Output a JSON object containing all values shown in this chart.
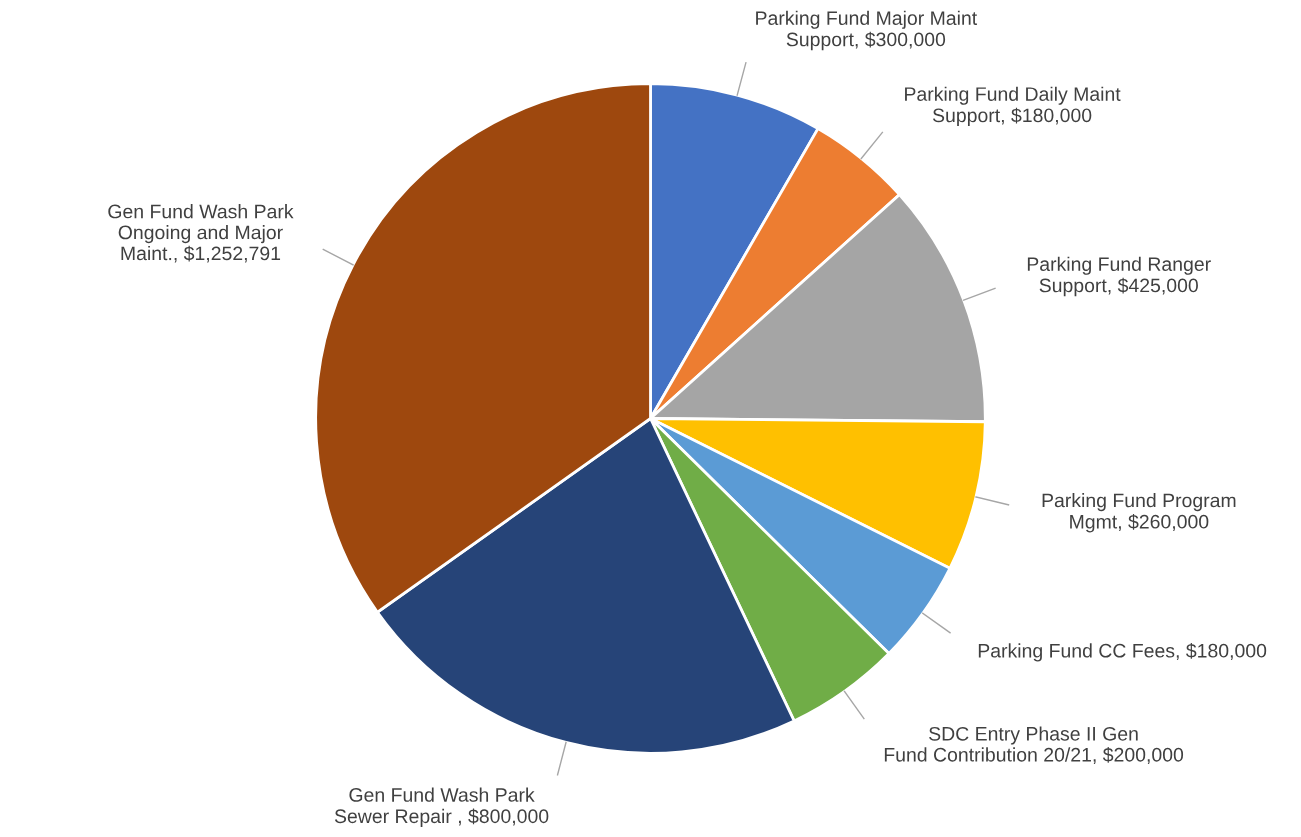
{
  "chart_data": {
    "type": "pie",
    "categories": [
      "Parking Fund Major Maint\nSupport",
      "Parking Fund Daily Maint\nSupport",
      "Parking Fund Ranger\nSupport",
      "Parking Fund Program\nMgmt",
      "Parking Fund CC Fees",
      "SDC Entry Phase II Gen\nFund Contribution 20/21",
      "Gen Fund Wash Park\nSewer Repair ",
      "Gen Fund Wash Park\nOngoing and Major\nMaint."
    ],
    "values": [
      300000,
      180000,
      425000,
      260000,
      180000,
      200000,
      800000,
      1252791
    ],
    "value_labels": [
      "$300,000",
      "$180,000",
      "$425,000",
      "$260,000",
      "$180,000",
      "$200,000",
      "$800,000",
      "$1,252,791"
    ],
    "colors": [
      "#4472c4",
      "#ed7d31",
      "#a5a5a5",
      "#ffc000",
      "#5b9bd5",
      "#70ad47",
      "#264478",
      "#9e480e"
    ]
  }
}
